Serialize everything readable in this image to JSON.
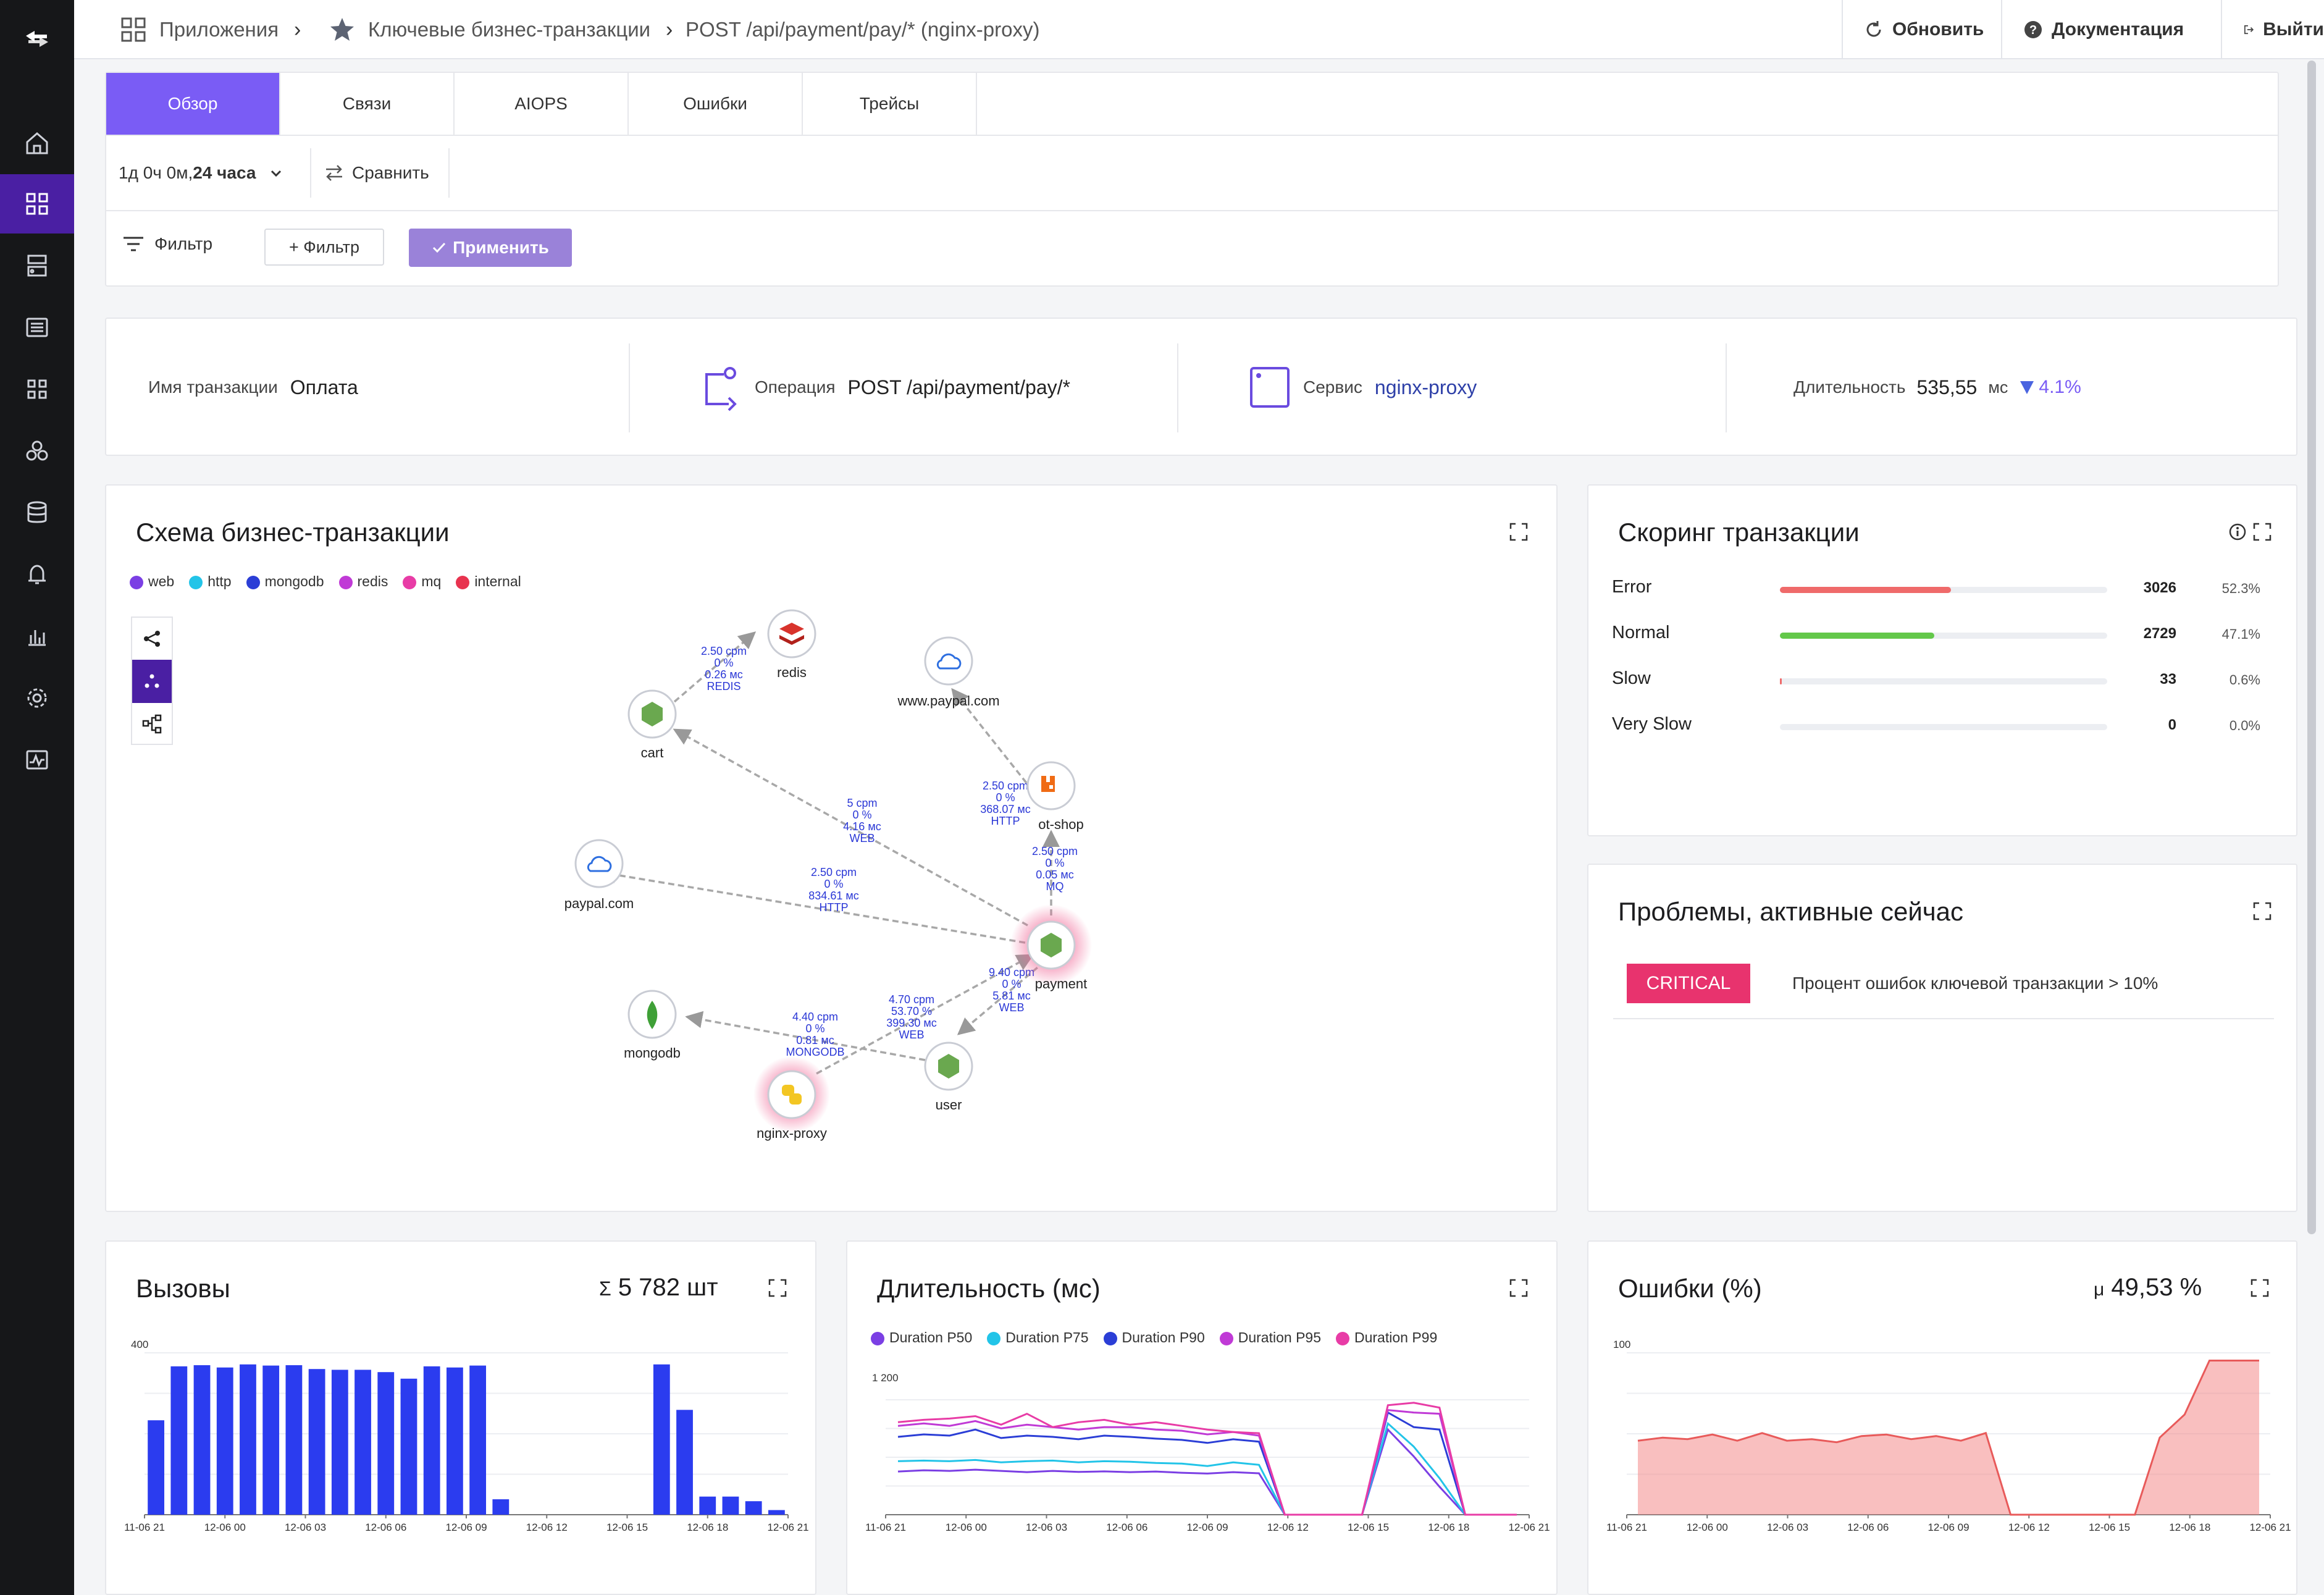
{
  "breadcrumbs": [
    "Приложения",
    "Ключевые бизнес-транзакции",
    "POST /api/payment/pay/* (nginx-proxy)"
  ],
  "topbar": {
    "refresh": "Обновить",
    "docs": "Документация",
    "logout": "Выйти"
  },
  "tabs": [
    "Обзор",
    "Связи",
    "AIOPS",
    "Ошибки",
    "Трейсы"
  ],
  "time": {
    "prefix": "1д 0ч 0м, ",
    "range": "24 часа",
    "compare": "Сравнить"
  },
  "filter": {
    "label": "Фильтр",
    "add": "+ Фильтр",
    "apply": "Применить"
  },
  "summary": {
    "name_label": "Имя транзакции",
    "name_value": "Оплата",
    "op_label": "Операция",
    "op_value": "POST /api/payment/pay/*",
    "service_label": "Сервис",
    "service_value": "nginx-proxy",
    "duration_label": "Длительность",
    "duration_value": "535,55",
    "duration_unit": "мс",
    "duration_delta": "4.1%"
  },
  "schema": {
    "title": "Схема бизнес-транзакции",
    "legend": [
      {
        "name": "web",
        "color": "#7b3fe4"
      },
      {
        "name": "http",
        "color": "#22c4e8"
      },
      {
        "name": "mongodb",
        "color": "#2b3ed6"
      },
      {
        "name": "redis",
        "color": "#c03ad6"
      },
      {
        "name": "mq",
        "color": "#e83ca6"
      },
      {
        "name": "internal",
        "color": "#e8334f"
      }
    ],
    "nodes": {
      "redis": "redis",
      "cart": "cart",
      "paypal_www": "www.paypal.com",
      "shop": "ot-shop",
      "paypal": "paypal.com",
      "payment": "payment",
      "mongodb": "mongodb",
      "user": "user",
      "nginx": "nginx-proxy"
    },
    "edges": [
      [
        "2.50 cpm",
        "0 %",
        "0.26 мс",
        "REDIS"
      ],
      [
        "5 cpm",
        "0 %",
        "4.16 мс",
        "WEB"
      ],
      [
        "2.50 cpm",
        "0 %",
        "368.07 мс",
        "HTTP"
      ],
      [
        "2.50 cpm",
        "0 %",
        "0.05 мс",
        "MQ"
      ],
      [
        "2.50 cpm",
        "0 %",
        "834.61 мс",
        "HTTP"
      ],
      [
        "9.40 cpm",
        "0 %",
        "5.81 мс",
        "WEB"
      ],
      [
        "4.70 cpm",
        "53.70 %",
        "399.30 мс",
        "WEB"
      ],
      [
        "4.40 cpm",
        "0 %",
        "0.81 мс",
        "MONGODB"
      ]
    ]
  },
  "scoring": {
    "title": "Скоринг транзакции",
    "rows": [
      {
        "label": "Error",
        "count": "3026",
        "pct": "52.3%",
        "ratio": 0.523,
        "color": "#ef6a6a"
      },
      {
        "label": "Normal",
        "count": "2729",
        "pct": "47.1%",
        "ratio": 0.471,
        "color": "#63c84a"
      },
      {
        "label": "Slow",
        "count": "33",
        "pct": "0.6%",
        "ratio": 0.006,
        "color": "#ef6a6a"
      },
      {
        "label": "Very Slow",
        "count": "0",
        "pct": "0.0%",
        "ratio": 0,
        "color": "#ef6a6a"
      }
    ]
  },
  "problems": {
    "title": "Проблемы, активные сейчас",
    "badge": "CRITICAL",
    "text": "Процент ошибок ключевой транзакции > 10%"
  },
  "calls": {
    "title": "Вызовы",
    "total": "5 782 шт",
    "sigma": "Σ"
  },
  "duration": {
    "title": "Длительность (мс)"
  },
  "errors": {
    "title": "Ошибки (%)",
    "avg": "49,53 %",
    "mu": "μ"
  },
  "chart_data": [
    {
      "type": "bar",
      "title": "Вызовы",
      "x_ticks": [
        "11-06 21",
        "12-06 00",
        "12-06 03",
        "12-06 06",
        "12-06 09",
        "12-06 12",
        "12-06 15",
        "12-06 18",
        "12-06 21"
      ],
      "y_ticks": [
        "400"
      ],
      "ylim": [
        0,
        420
      ],
      "values": [
        245,
        385,
        388,
        382,
        390,
        387,
        388,
        378,
        376,
        376,
        370,
        353,
        385,
        382,
        387,
        40,
        0,
        0,
        0,
        0,
        0,
        0,
        390,
        272,
        47,
        47,
        35,
        12
      ],
      "color": "#2b3cef"
    },
    {
      "type": "line",
      "title": "Длительность (мс)",
      "y_ticks": [
        "1 200"
      ],
      "ylim": [
        0,
        1300
      ],
      "x_ticks": [
        "11-06 21",
        "12-06 00",
        "12-06 03",
        "12-06 06",
        "12-06 09",
        "12-06 12",
        "12-06 15",
        "12-06 18",
        "12-06 21"
      ],
      "series": [
        {
          "name": "Duration P50",
          "color": "#7b3fe4",
          "values": [
            355,
            365,
            360,
            370,
            360,
            350,
            360,
            352,
            356,
            350,
            355,
            345,
            338,
            350,
            340,
            0,
            0,
            0,
            0,
            700,
            480,
            230,
            0,
            0,
            0
          ]
        },
        {
          "name": "Duration P75",
          "color": "#22c4e8",
          "values": [
            440,
            445,
            440,
            450,
            430,
            440,
            445,
            430,
            440,
            435,
            425,
            420,
            400,
            430,
            410,
            0,
            0,
            0,
            0,
            750,
            560,
            300,
            0,
            0,
            0
          ]
        },
        {
          "name": "Duration P90",
          "color": "#2b3ed6",
          "values": [
            640,
            660,
            650,
            700,
            630,
            650,
            640,
            620,
            650,
            640,
            625,
            615,
            590,
            620,
            600,
            0,
            0,
            0,
            0,
            840,
            720,
            700,
            0,
            0,
            0
          ]
        },
        {
          "name": "Duration P95",
          "color": "#c03ad6",
          "values": [
            730,
            750,
            730,
            770,
            710,
            740,
            720,
            700,
            720,
            720,
            700,
            690,
            660,
            680,
            650,
            0,
            0,
            0,
            0,
            860,
            840,
            830,
            0,
            0,
            0
          ]
        },
        {
          "name": "Duration P99",
          "color": "#e83ca6",
          "values": [
            760,
            780,
            790,
            810,
            740,
            830,
            720,
            760,
            780,
            740,
            760,
            730,
            700,
            680,
            670,
            0,
            0,
            0,
            0,
            900,
            920,
            880,
            0,
            0,
            0
          ]
        }
      ]
    },
    {
      "type": "area",
      "title": "Ошибки (%)",
      "y_ticks": [
        "100"
      ],
      "ylim": [
        0,
        105
      ],
      "x_ticks": [
        "11-06 21",
        "12-06 00",
        "12-06 03",
        "12-06 06",
        "12-06 09",
        "12-06 12",
        "12-06 15",
        "12-06 18",
        "12-06 21"
      ],
      "values": [
        48,
        50,
        49,
        52,
        48,
        53,
        48,
        49,
        47,
        51,
        52,
        49,
        51,
        48,
        53,
        0,
        0,
        0,
        0,
        0,
        0,
        50,
        65,
        100,
        100,
        100
      ],
      "color": "#f48a8a"
    }
  ]
}
